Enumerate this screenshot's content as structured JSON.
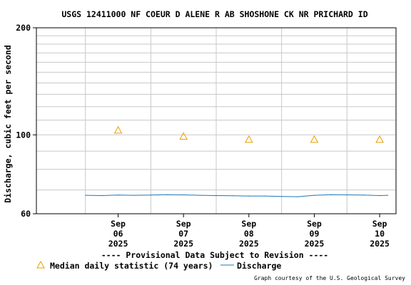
{
  "chart_data": {
    "type": "line",
    "title": "USGS 12411000 NF COEUR D ALENE R AB SHOSHONE CK NR PRICHARD ID",
    "ylabel": "Discharge, cubic feet per second",
    "xlabel": "",
    "y_scale": "log",
    "ylim": [
      60,
      200
    ],
    "y_ticks": [
      {
        "value": 60,
        "label": "60"
      },
      {
        "value": 100,
        "label": "100"
      },
      {
        "value": 200,
        "label": "200"
      }
    ],
    "y_minor_grid": [
      70,
      80,
      90,
      110,
      120,
      130,
      140,
      150,
      160,
      170,
      180,
      190
    ],
    "xlim": [
      "2025-09-05T06:00",
      "2025-09-10T18:00"
    ],
    "x_ticks": [
      {
        "date": "2025-09-06T12:00",
        "line1": "Sep",
        "line2": "06",
        "line3": "2025"
      },
      {
        "date": "2025-09-07T12:00",
        "line1": "Sep",
        "line2": "07",
        "line3": "2025"
      },
      {
        "date": "2025-09-08T12:00",
        "line1": "Sep",
        "line2": "08",
        "line3": "2025"
      },
      {
        "date": "2025-09-09T12:00",
        "line1": "Sep",
        "line2": "09",
        "line3": "2025"
      },
      {
        "date": "2025-09-10T12:00",
        "line1": "Sep",
        "line2": "10",
        "line3": "2025"
      }
    ],
    "x_grid_dates": [
      "2025-09-06T00:00",
      "2025-09-07T00:00",
      "2025-09-08T00:00",
      "2025-09-09T00:00",
      "2025-09-10T00:00"
    ],
    "series": [
      {
        "name": "Median daily statistic (74 years)",
        "style": "triangle-markers",
        "color": "#e8a000",
        "points": [
          {
            "x": "2025-09-06T12:00",
            "y": 103
          },
          {
            "x": "2025-09-07T12:00",
            "y": 99
          },
          {
            "x": "2025-09-08T12:00",
            "y": 97
          },
          {
            "x": "2025-09-09T12:00",
            "y": 97
          },
          {
            "x": "2025-09-10T12:00",
            "y": 97
          }
        ]
      },
      {
        "name": "Discharge",
        "style": "line",
        "color": "#1f77b4",
        "points": [
          {
            "x": "2025-09-06T00:00",
            "y": 67.6
          },
          {
            "x": "2025-09-06T06:00",
            "y": 67.5
          },
          {
            "x": "2025-09-06T12:00",
            "y": 67.7
          },
          {
            "x": "2025-09-06T18:00",
            "y": 67.6
          },
          {
            "x": "2025-09-07T00:00",
            "y": 67.7
          },
          {
            "x": "2025-09-07T06:00",
            "y": 67.9
          },
          {
            "x": "2025-09-07T12:00",
            "y": 67.8
          },
          {
            "x": "2025-09-07T18:00",
            "y": 67.6
          },
          {
            "x": "2025-09-08T00:00",
            "y": 67.5
          },
          {
            "x": "2025-09-08T06:00",
            "y": 67.4
          },
          {
            "x": "2025-09-08T12:00",
            "y": 67.3
          },
          {
            "x": "2025-09-08T18:00",
            "y": 67.3
          },
          {
            "x": "2025-09-09T00:00",
            "y": 67.1
          },
          {
            "x": "2025-09-09T06:00",
            "y": 67.0
          },
          {
            "x": "2025-09-09T12:00",
            "y": 67.6
          },
          {
            "x": "2025-09-09T18:00",
            "y": 67.9
          },
          {
            "x": "2025-09-10T00:00",
            "y": 67.8
          },
          {
            "x": "2025-09-10T06:00",
            "y": 67.7
          },
          {
            "x": "2025-09-10T12:00",
            "y": 67.5
          },
          {
            "x": "2025-09-10T15:00",
            "y": 67.6
          }
        ]
      }
    ],
    "grid": true
  },
  "notice": "---- Provisional Data Subject to Revision ----",
  "notice_color": "#e00000",
  "legend": {
    "median_label": "Median daily statistic (74 years)",
    "discharge_label": "Discharge"
  },
  "credit": "Graph courtesy of the U.S. Geological Survey"
}
